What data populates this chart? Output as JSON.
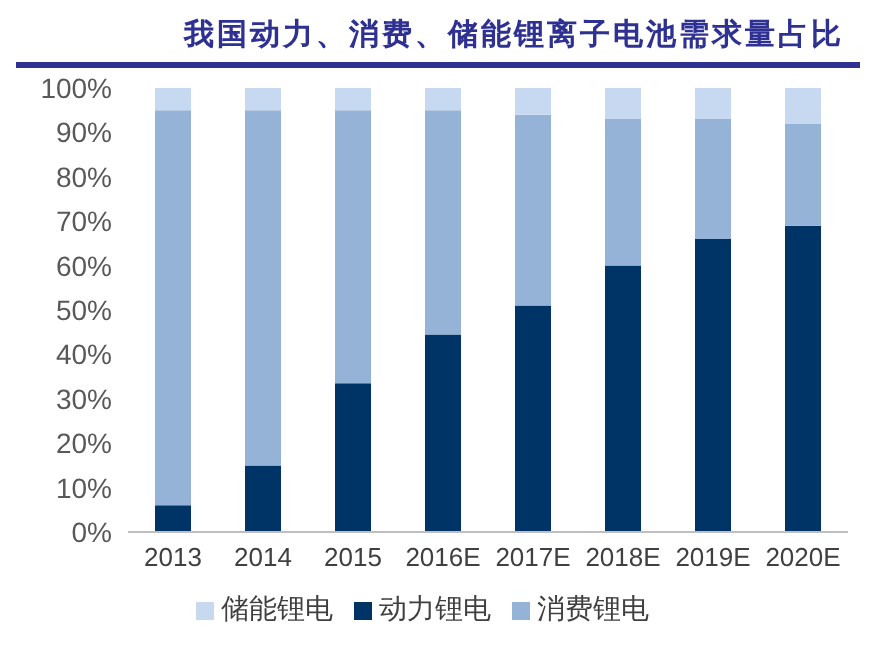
{
  "chart_data": {
    "type": "bar",
    "title": "我国动力、消费、储能锂离子电池需求量占比",
    "stacked": true,
    "categories": [
      "2013",
      "2014",
      "2015",
      "2016E",
      "2017E",
      "2018E",
      "2019E",
      "2020E"
    ],
    "series": [
      {
        "name": "动力锂电",
        "color": "#003366",
        "values": [
          6,
          15,
          33.5,
          44.5,
          51,
          60,
          66,
          69
        ]
      },
      {
        "name": "消费锂电",
        "color": "#95b3d7",
        "values": [
          89,
          80,
          61.5,
          50.5,
          43,
          33,
          27,
          23
        ]
      },
      {
        "name": "储能锂电",
        "color": "#c6d9f1",
        "values": [
          5,
          5,
          5,
          5,
          6,
          7,
          7,
          8
        ]
      }
    ],
    "ylim": [
      0,
      100
    ],
    "yticks": [
      {
        "value": 0,
        "label": "0%"
      },
      {
        "value": 10,
        "label": "10%"
      },
      {
        "value": 20,
        "label": "20%"
      },
      {
        "value": 30,
        "label": "30%"
      },
      {
        "value": 40,
        "label": "40%"
      },
      {
        "value": 50,
        "label": "50%"
      },
      {
        "value": 60,
        "label": "60%"
      },
      {
        "value": 70,
        "label": "70%"
      },
      {
        "value": 80,
        "label": "80%"
      },
      {
        "value": 90,
        "label": "90%"
      },
      {
        "value": 100,
        "label": "100%"
      }
    ],
    "grid": false,
    "legend": "bottom"
  }
}
